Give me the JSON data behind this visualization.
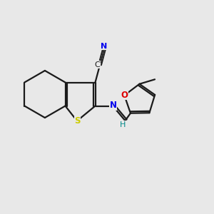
{
  "background_color": "#e8e8e8",
  "bond_color": "#1a1a1a",
  "atom_colors": {
    "N": "#0000ee",
    "S": "#cccc00",
    "O": "#dd0000",
    "H": "#008888",
    "C_nitrile": "#1a1a1a"
  },
  "figsize": [
    3.0,
    3.0
  ],
  "dpi": 100,
  "xlim": [
    0,
    10
  ],
  "ylim": [
    0,
    10
  ]
}
